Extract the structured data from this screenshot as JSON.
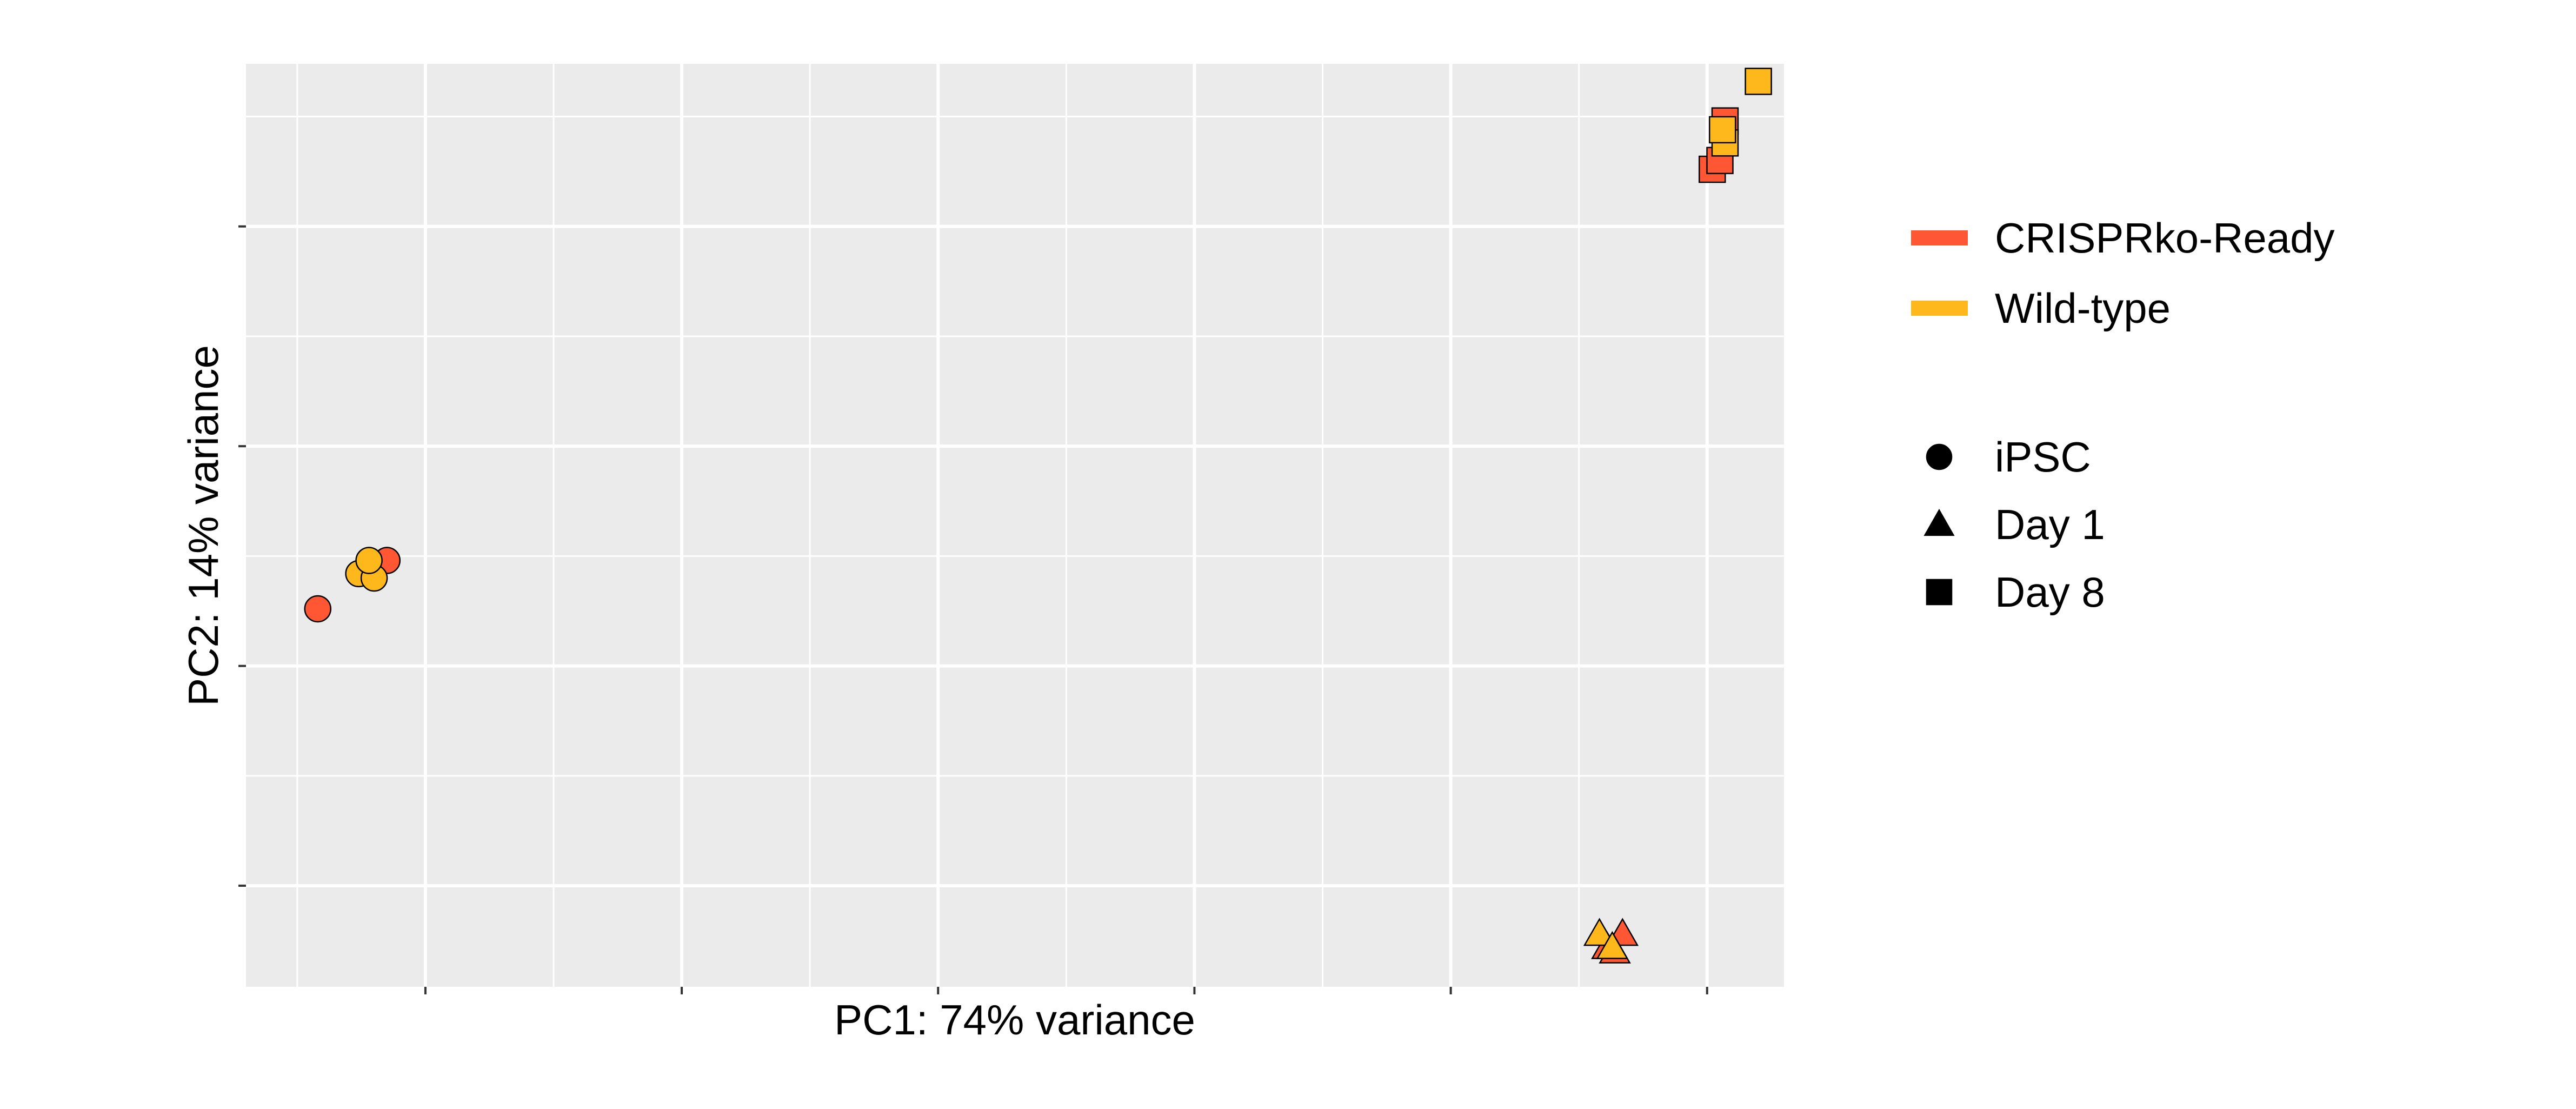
{
  "chart_data": {
    "type": "scatter",
    "title": "",
    "xlabel": "PC1: 74% variance",
    "ylabel": "PC2: 14% variance",
    "xlim": [
      -70,
      530
    ],
    "ylim": [
      -148,
      62
    ],
    "x_ticks": [
      0,
      100,
      200,
      300,
      400,
      500
    ],
    "y_ticks": [
      -125,
      -75,
      -25,
      25
    ],
    "show_tick_labels": false,
    "grid": true,
    "legend_position": "right",
    "color_legend": [
      {
        "label": "CRISPRko-Ready",
        "color": "#FF5733"
      },
      {
        "label": "Wild-type",
        "color": "#FFB81C"
      }
    ],
    "shape_legend": [
      {
        "label": "iPSC",
        "shape": "circle"
      },
      {
        "label": "Day 1",
        "shape": "triangle"
      },
      {
        "label": "Day 8",
        "shape": "square"
      }
    ],
    "series": [
      {
        "name": "CRISPRko-Ready",
        "shape": "circle",
        "color": "#FF5733",
        "points": [
          [
            -42,
            -62
          ],
          [
            -15,
            -51
          ]
        ]
      },
      {
        "name": "Wild-type",
        "shape": "circle",
        "color": "#FFB81C",
        "points": [
          [
            -26,
            -54
          ],
          [
            -20,
            -55
          ],
          [
            -22,
            -51
          ]
        ]
      },
      {
        "name": "CRISPRko-Ready",
        "shape": "triangle",
        "color": "#FF5733",
        "points": [
          [
            461,
            -139
          ],
          [
            467,
            -136
          ],
          [
            464,
            -140
          ]
        ]
      },
      {
        "name": "Wild-type",
        "shape": "triangle",
        "color": "#FFB81C",
        "points": [
          [
            458,
            -136
          ],
          [
            463,
            -139
          ]
        ]
      },
      {
        "name": "CRISPRko-Ready",
        "shape": "square",
        "color": "#FF5733",
        "points": [
          [
            502,
            38
          ],
          [
            507,
            49
          ],
          [
            505,
            40
          ]
        ]
      },
      {
        "name": "Wild-type",
        "shape": "square",
        "color": "#FFB81C",
        "points": [
          [
            520,
            58
          ],
          [
            507,
            44
          ],
          [
            506,
            47
          ]
        ]
      }
    ]
  }
}
